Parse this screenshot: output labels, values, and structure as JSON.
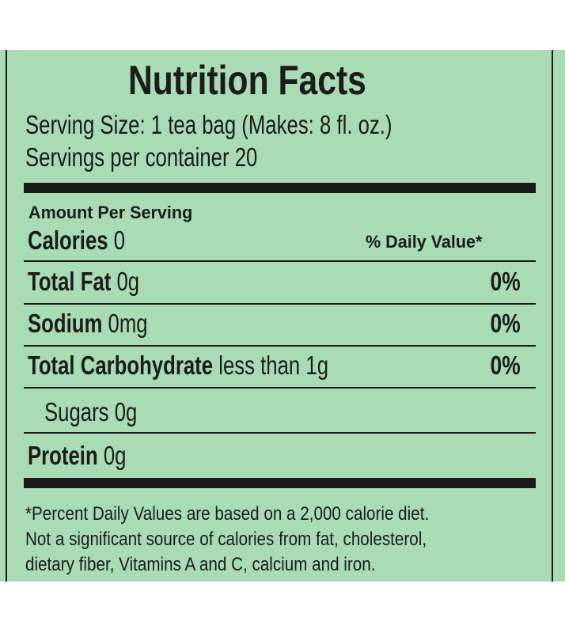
{
  "label": {
    "title": "Nutrition Facts",
    "serving_size": "Serving Size: 1 tea bag (Makes: 8 fl. oz.)",
    "servings_per_container": "Servings per container 20",
    "amount_per_serving": "Amount Per Serving",
    "calories_label": "Calories",
    "calories_value": "0",
    "daily_value_header": "% Daily Value*",
    "nutrients": [
      {
        "name": "Total Fat",
        "amount": "0g",
        "dv": "0%"
      },
      {
        "name": "Sodium",
        "amount": "0mg",
        "dv": "0%"
      },
      {
        "name": "Total Carbohydrate",
        "amount": "less than 1g",
        "dv": "0%"
      },
      {
        "name": "Sugars",
        "amount": "0g"
      },
      {
        "name": "Protein",
        "amount": "0g"
      }
    ],
    "footnote": [
      "*Percent Daily Values are based on a 2,000 calorie diet.",
      "Not a significant source of calories from fat, cholesterol,",
      "dietary fiber, Vitamins A and C, calcium and iron."
    ],
    "background_color": "#a9dbb5",
    "ink_color": "#1c1c1a"
  }
}
